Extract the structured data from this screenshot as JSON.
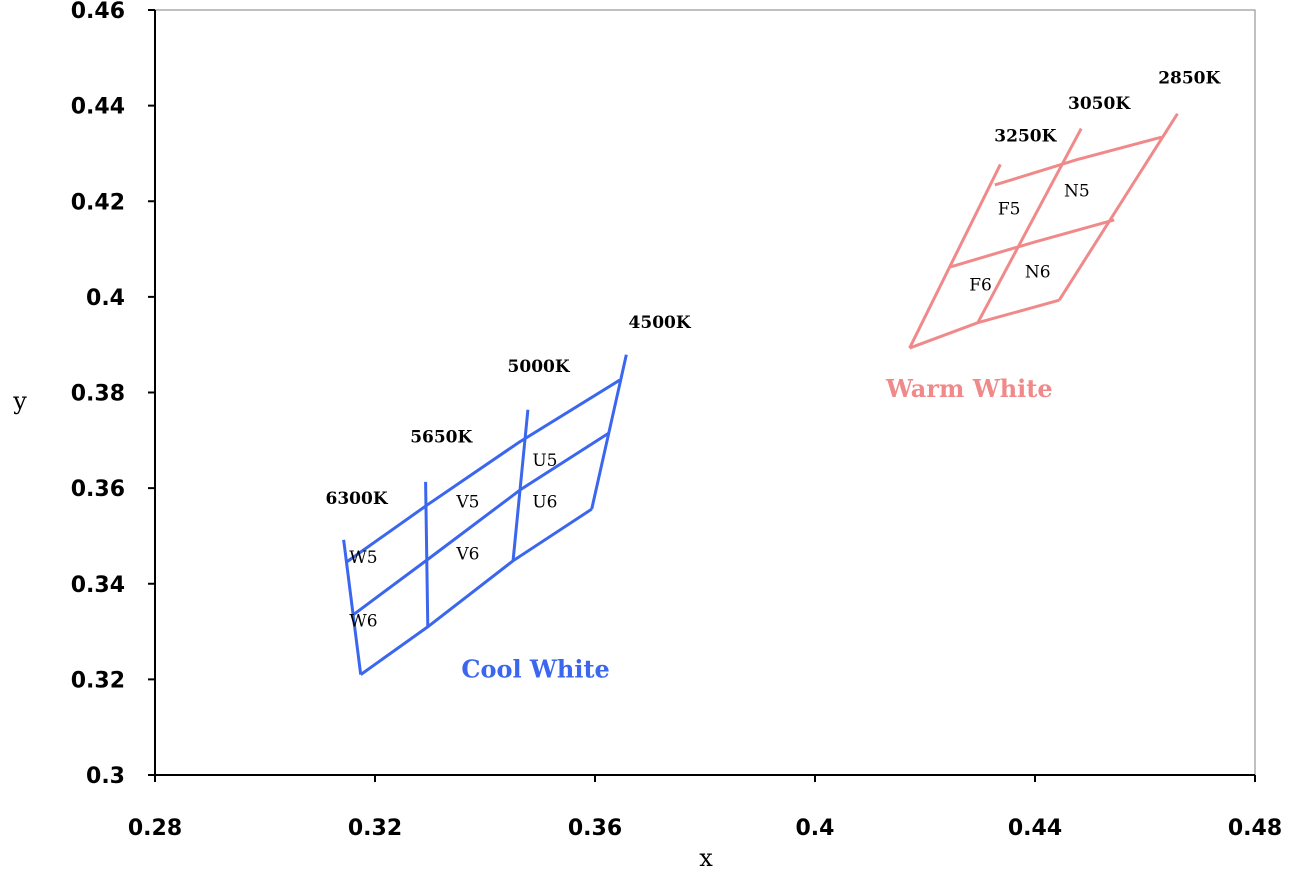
{
  "chart_data": {
    "type": "diagram",
    "xlabel": "x",
    "ylabel": "y",
    "xlim": [
      0.28,
      0.48
    ],
    "ylim": [
      0.3,
      0.46
    ],
    "xticks": [
      "0.28",
      "0.32",
      "0.36",
      "0.4",
      "0.44",
      "0.48"
    ],
    "yticks": [
      "0.3",
      "0.32",
      "0.34",
      "0.36",
      "0.38",
      "0.4",
      "0.42",
      "0.44",
      "0.46"
    ],
    "grid": false,
    "colors": {
      "cool": "#3b66ee",
      "warm": "#f08a8a"
    },
    "groups": [
      {
        "name": "Cool White",
        "color": "#3b66ee",
        "name_position": {
          "x": 0.3357,
          "y": 0.3204
        },
        "cct_lines": [
          {
            "label": "6300K",
            "points": [
              [
                0.3143,
                0.3492
              ],
              [
                0.3174,
                0.321
              ]
            ],
            "label_position": {
              "x": 0.311,
              "y": 0.3567
            }
          },
          {
            "label": "5650K",
            "points": [
              [
                0.3292,
                0.3613
              ],
              [
                0.3296,
                0.331
              ]
            ],
            "label_position": {
              "x": 0.3264,
              "y": 0.3695
            }
          },
          {
            "label": "5000K",
            "points": [
              [
                0.3478,
                0.3764
              ],
              [
                0.3451,
                0.3448
              ]
            ],
            "label_position": {
              "x": 0.3441,
              "y": 0.3843
            }
          },
          {
            "label": "4500K",
            "points": [
              [
                0.3657,
                0.3879
              ],
              [
                0.3594,
                0.3556
              ]
            ],
            "label_position": {
              "x": 0.3661,
              "y": 0.3935
            }
          }
        ],
        "duv_lines": [
          [
            [
              0.3149,
              0.3446
            ],
            [
              0.3294,
              0.3564
            ],
            [
              0.3462,
              0.3696
            ],
            [
              0.3645,
              0.3826
            ]
          ],
          [
            [
              0.3158,
              0.3333
            ],
            [
              0.3296,
              0.3451
            ],
            [
              0.3466,
              0.3598
            ],
            [
              0.3625,
              0.3715
            ]
          ],
          [
            [
              0.3174,
              0.321
            ],
            [
              0.3296,
              0.331
            ],
            [
              0.3451,
              0.3448
            ],
            [
              0.3594,
              0.3556
            ]
          ]
        ],
        "bins": [
          {
            "label": "U5",
            "x": 0.3509,
            "y": 0.3646
          },
          {
            "label": "U6",
            "x": 0.3509,
            "y": 0.356
          },
          {
            "label": "V5",
            "x": 0.3369,
            "y": 0.356
          },
          {
            "label": "V6",
            "x": 0.3369,
            "y": 0.3451
          },
          {
            "label": "W5",
            "x": 0.3179,
            "y": 0.3443
          },
          {
            "label": "W6",
            "x": 0.3179,
            "y": 0.3311
          }
        ]
      },
      {
        "name": "Warm White",
        "color": "#f08a8a",
        "name_position": {
          "x": 0.4129,
          "y": 0.3791
        },
        "cct_lines": [
          {
            "label": "3250K",
            "points": [
              [
                0.4337,
                0.4277
              ],
              [
                0.4172,
                0.3893
              ]
            ],
            "label_position": {
              "x": 0.4326,
              "y": 0.4325
            }
          },
          {
            "label": "3050K",
            "points": [
              [
                0.4484,
                0.4352
              ],
              [
                0.4296,
                0.3946
              ]
            ],
            "label_position": {
              "x": 0.446,
              "y": 0.4393
            }
          },
          {
            "label": "2850K",
            "points": [
              [
                0.4659,
                0.4383
              ],
              [
                0.4444,
                0.3993
              ]
            ],
            "label_position": {
              "x": 0.4624,
              "y": 0.4446
            }
          }
        ],
        "duv_lines": [
          [
            [
              0.4327,
              0.4234
            ],
            [
              0.4476,
              0.4287
            ],
            [
              0.463,
              0.4334
            ]
          ],
          [
            [
              0.4247,
              0.4063
            ],
            [
              0.44,
              0.4115
            ],
            [
              0.4544,
              0.4161
            ]
          ],
          [
            [
              0.4172,
              0.3893
            ],
            [
              0.4296,
              0.3946
            ],
            [
              0.4444,
              0.3993
            ]
          ]
        ],
        "bins": [
          {
            "label": "F5",
            "x": 0.4353,
            "y": 0.4172
          },
          {
            "label": "N5",
            "x": 0.4476,
            "y": 0.421
          },
          {
            "label": "F6",
            "x": 0.4301,
            "y": 0.4013
          },
          {
            "label": "N6",
            "x": 0.4405,
            "y": 0.4041
          }
        ]
      }
    ]
  }
}
